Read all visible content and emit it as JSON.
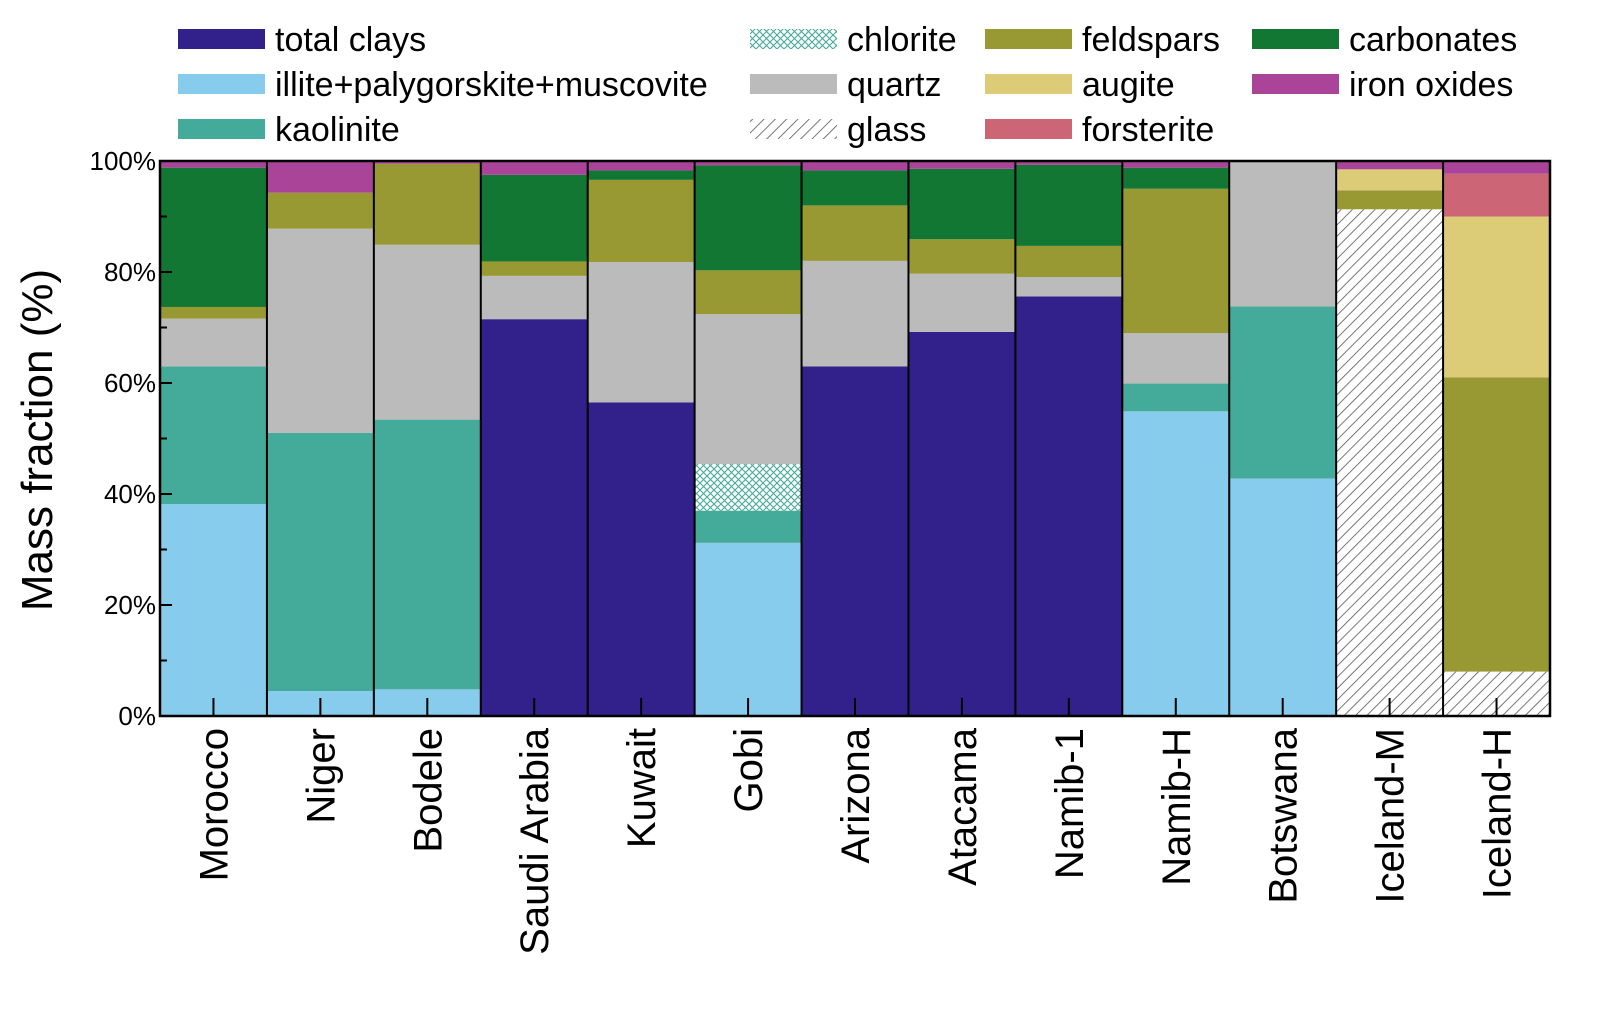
{
  "chart_data": {
    "type": "bar",
    "stacked": true,
    "ylabel": "Mass fraction (%)",
    "ylim": [
      0,
      100
    ],
    "yticks": [
      "0%",
      "20%",
      "40%",
      "60%",
      "80%",
      "100%"
    ],
    "categories": [
      "Morocco",
      "Niger",
      "Bodele",
      "Saudi Arabia",
      "Kuwait",
      "Gobi",
      "Arizona",
      "Atacama",
      "Namib-1",
      "Namib-H",
      "Botswana",
      "Iceland-M",
      "Iceland-H"
    ],
    "legend_placement": "top",
    "series": [
      {
        "name": "total clays",
        "color": "#32218a",
        "pattern": "solid",
        "values": [
          0,
          0,
          0,
          71.5,
          56.5,
          0,
          63,
          69.2,
          75.6,
          0,
          0,
          0,
          0
        ]
      },
      {
        "name": "illite+palygorskite+muscovite",
        "color": "#88cced",
        "pattern": "solid",
        "values": [
          38.2,
          4.5,
          4.8,
          0,
          0,
          31.2,
          0,
          0,
          0,
          54.9,
          42.8,
          0,
          0
        ]
      },
      {
        "name": "kaolinite",
        "color": "#44aa99",
        "pattern": "solid",
        "values": [
          24.8,
          46.5,
          48.6,
          0,
          0,
          5.8,
          0,
          0,
          0,
          5.0,
          31.0,
          0,
          0
        ]
      },
      {
        "name": "chlorite",
        "color": "#44aa99",
        "pattern": "crosshatch",
        "values": [
          0,
          0,
          0,
          0,
          0,
          8.4,
          0,
          0,
          0,
          0,
          0,
          0,
          0
        ]
      },
      {
        "name": "quartz",
        "color": "#bbbbbb",
        "pattern": "solid",
        "values": [
          8.6,
          36.8,
          31.5,
          7.8,
          25.3,
          27.0,
          19.0,
          10.5,
          3.5,
          9.1,
          26.2,
          0,
          0
        ]
      },
      {
        "name": "glass",
        "color": "#555555",
        "pattern": "diagonal",
        "values": [
          0,
          0,
          0,
          0,
          0,
          0,
          0,
          0,
          0,
          0,
          0,
          91.3,
          8.0
        ]
      },
      {
        "name": "feldspars",
        "color": "#999933",
        "pattern": "solid",
        "values": [
          2.1,
          6.5,
          14.6,
          2.6,
          14.8,
          7.9,
          10.0,
          6.2,
          5.6,
          26.0,
          0,
          3.4,
          53.0
        ]
      },
      {
        "name": "augite",
        "color": "#ddcc77",
        "pattern": "solid",
        "values": [
          0,
          0,
          0,
          0,
          0,
          0,
          0,
          0,
          0,
          0,
          0,
          3.8,
          29.0
        ]
      },
      {
        "name": "forsterite",
        "color": "#cc6677",
        "pattern": "solid",
        "values": [
          0,
          0,
          0,
          0,
          0,
          0,
          0,
          0,
          0,
          0,
          0,
          0,
          7.7
        ]
      },
      {
        "name": "carbonates",
        "color": "#117733",
        "pattern": "solid",
        "values": [
          25.1,
          0,
          0,
          15.6,
          1.7,
          18.9,
          6.3,
          12.7,
          14.6,
          3.8,
          0,
          0,
          0
        ]
      },
      {
        "name": "iron oxides",
        "color": "#aa4499",
        "pattern": "solid",
        "values": [
          1.2,
          5.7,
          0.5,
          2.5,
          1.7,
          0.8,
          1.7,
          1.4,
          0.7,
          1.2,
          0,
          1.5,
          2.3
        ]
      }
    ],
    "legend_layout": [
      [
        "total clays",
        "illite+palygorskite+muscovite",
        "kaolinite"
      ],
      [
        "chlorite",
        "quartz",
        "glass"
      ],
      [
        "feldspars",
        "augite",
        "forsterite"
      ],
      [
        "carbonates",
        "iron oxides"
      ]
    ]
  }
}
